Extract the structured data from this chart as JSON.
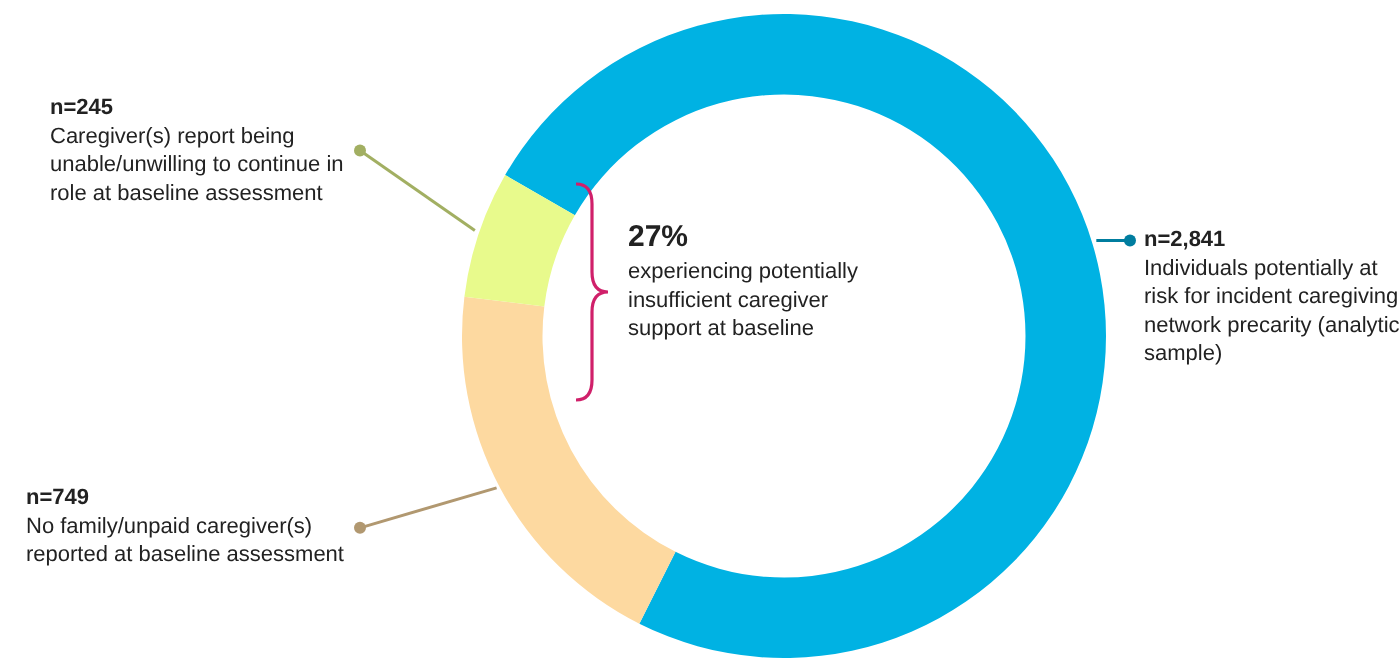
{
  "chart_data": {
    "type": "donut",
    "categories": [
      "Individuals potentially at risk for incident caregiving network precarity (analytic sample)",
      "No family/unpaid caregiver(s) reported at baseline assessment",
      "Caregiver(s) report being unable/unwilling to continue in role at baseline assessment"
    ],
    "values": [
      2841,
      749,
      245
    ],
    "value_labels": [
      "n=2,841",
      "n=749",
      "n=245"
    ],
    "colors": [
      "#00b2e3",
      "#fdd9a0",
      "#e8fa8c"
    ],
    "annotations": [
      "27%",
      "experiencing potentially insufficient caregiver support at baseline"
    ],
    "legend": false
  }
}
